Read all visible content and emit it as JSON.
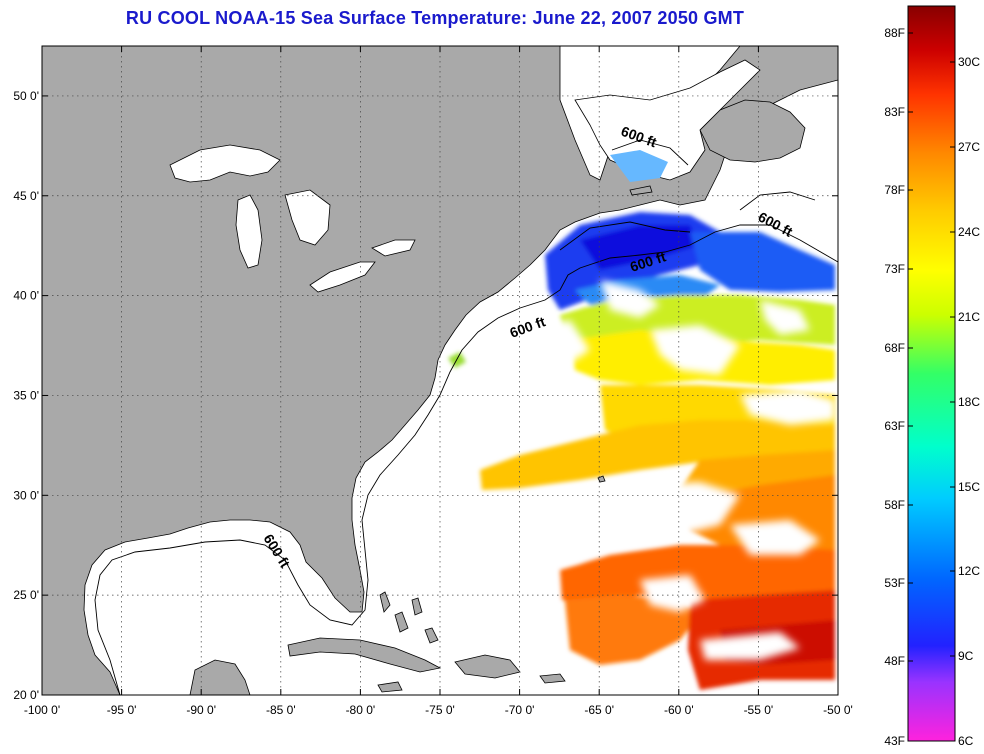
{
  "title": "RU COOL  NOAA-15  Sea Surface Temperature:  June 22, 2007 2050 GMT",
  "map": {
    "lon_range": [
      -100,
      -50
    ],
    "lat_range": [
      20,
      52.5
    ],
    "lon_ticks": [
      "-100 0'",
      "-95 0'",
      "-90 0'",
      "-85 0'",
      "-80 0'",
      "-75 0'",
      "-70 0'",
      "-65 0'",
      "-60 0'",
      "-55 0'",
      "-50 0'"
    ],
    "lat_ticks": [
      "20 0'",
      "25 0'",
      "30 0'",
      "35 0'",
      "40 0'",
      "45 0'",
      "50 0'"
    ],
    "land_color": "#a9a9a9",
    "water_color": "#ffffff",
    "grid": "dotted",
    "contour_labels": [
      "600 ft",
      "600 ft",
      "600 ft",
      "600 ft",
      "600 ft"
    ]
  },
  "colorbar": {
    "fahrenheit_labels": [
      "88F",
      "83F",
      "78F",
      "73F",
      "68F",
      "63F",
      "58F",
      "53F",
      "48F",
      "43F"
    ],
    "celsius_labels": [
      "30C",
      "27C",
      "24C",
      "21C",
      "18C",
      "15C",
      "12C",
      "9C",
      "6C"
    ],
    "colors": [
      "#ff22dd",
      "#9933ff",
      "#2222ff",
      "#0066ff",
      "#00ccff",
      "#00ffcc",
      "#33ff66",
      "#ccff00",
      "#ffff00",
      "#ffcc00",
      "#ff8800",
      "#ff3300",
      "#cc0000",
      "#880000"
    ]
  }
}
